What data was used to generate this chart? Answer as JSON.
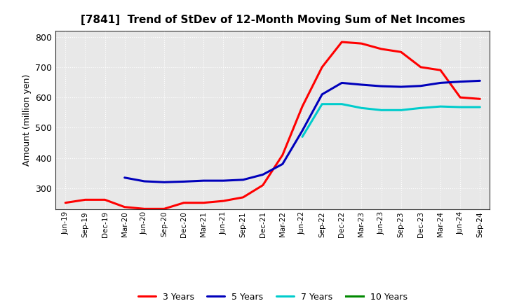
{
  "title": "[7841]  Trend of StDev of 12-Month Moving Sum of Net Incomes",
  "ylabel": "Amount (million yen)",
  "ylim": [
    230,
    820
  ],
  "yticks": [
    300,
    400,
    500,
    600,
    700,
    800
  ],
  "background_color": "#ffffff",
  "plot_bg_color": "#e8e8e8",
  "grid_color": "#ffffff",
  "x_labels": [
    "Jun-19",
    "Sep-19",
    "Dec-19",
    "Mar-20",
    "Jun-20",
    "Sep-20",
    "Dec-20",
    "Mar-21",
    "Jun-21",
    "Sep-21",
    "Dec-21",
    "Mar-22",
    "Jun-22",
    "Sep-22",
    "Dec-22",
    "Mar-23",
    "Jun-23",
    "Sep-23",
    "Dec-23",
    "Mar-24",
    "Jun-24",
    "Sep-24"
  ],
  "series": {
    "3 Years": {
      "color": "#ff0000",
      "linewidth": 2.2,
      "data": [
        252,
        262,
        262,
        238,
        232,
        232,
        252,
        252,
        258,
        270,
        310,
        410,
        570,
        700,
        783,
        778,
        760,
        750,
        700,
        690,
        600,
        595
      ]
    },
    "5 Years": {
      "color": "#0000bb",
      "linewidth": 2.2,
      "data": [
        null,
        null,
        null,
        335,
        323,
        320,
        322,
        325,
        325,
        328,
        345,
        380,
        490,
        610,
        648,
        642,
        637,
        635,
        638,
        648,
        652,
        655
      ]
    },
    "7 Years": {
      "color": "#00cccc",
      "linewidth": 2.2,
      "data": [
        null,
        null,
        null,
        null,
        null,
        null,
        null,
        null,
        null,
        null,
        null,
        null,
        470,
        578,
        578,
        565,
        558,
        558,
        565,
        570,
        568,
        568
      ]
    },
    "10 Years": {
      "color": "#008800",
      "linewidth": 2.2,
      "data": [
        null,
        null,
        null,
        null,
        null,
        null,
        null,
        null,
        null,
        null,
        null,
        null,
        null,
        null,
        null,
        null,
        null,
        null,
        null,
        null,
        null,
        null
      ]
    }
  }
}
